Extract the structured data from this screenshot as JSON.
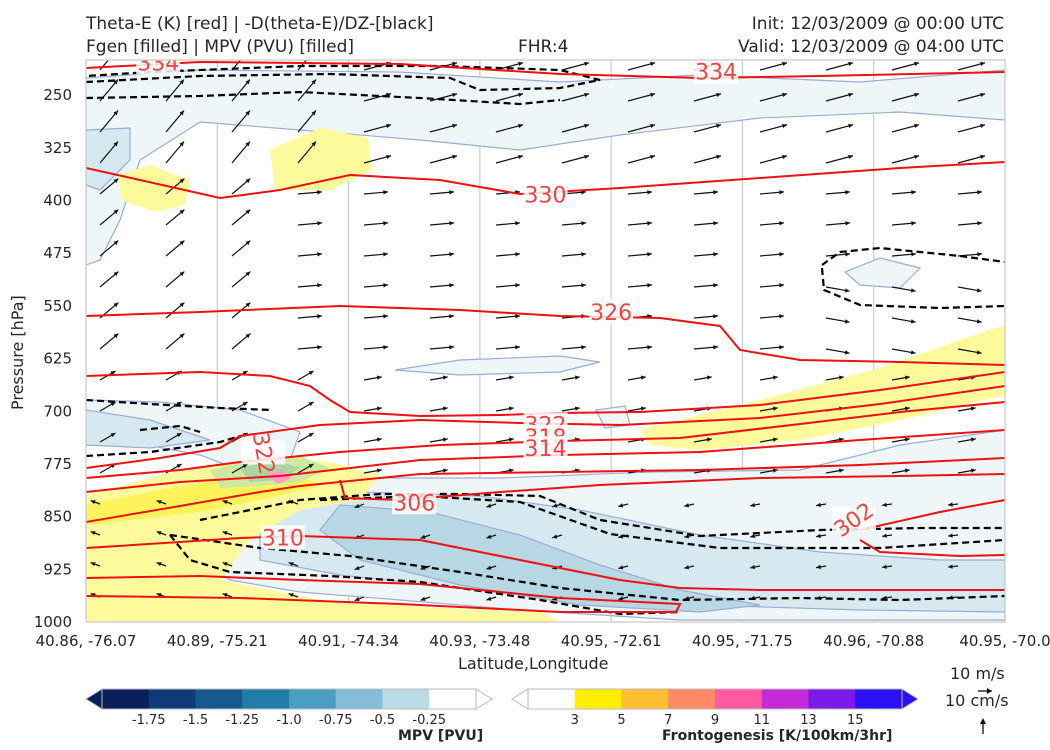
{
  "header": {
    "line1_left": "Theta-E (K) [red] | -D(theta-E)/DZ-[black]",
    "line2_left": "Fgen [filled] | MPV (PVU) [filled]",
    "fhr": "FHR:4",
    "init": "Init: 12/03/2009 @ 00:00 UTC",
    "valid": "Valid: 12/03/2009 @ 04:00 UTC"
  },
  "chart_data": {
    "type": "cross-section",
    "xlabel": "Latitude,Longitude",
    "ylabel": "Pressure [hPa]",
    "x_ticks": [
      "40.86, -76.07",
      "40.89, -75.21",
      "40.91, -74.34",
      "40.93, -73.48",
      "40.95, -72.61",
      "40.95, -71.75",
      "40.96, -70.88",
      "40.95, -70.0"
    ],
    "y_ticks": [
      250,
      325,
      400,
      475,
      550,
      625,
      700,
      775,
      850,
      925,
      1000
    ],
    "ylim": [
      1000,
      200
    ],
    "y_inverted": true,
    "theta_e_labels": [
      {
        "value": "334",
        "x_index": 0.55,
        "p": 205
      },
      {
        "value": "334",
        "x_index": 4.8,
        "p": 218
      },
      {
        "value": "330",
        "x_index": 3.5,
        "p": 393
      },
      {
        "value": "326",
        "x_index": 4.0,
        "p": 560
      },
      {
        "value": "322",
        "x_index": 3.5,
        "p": 720
      },
      {
        "value": "318",
        "x_index": 3.5,
        "p": 738
      },
      {
        "value": "314",
        "x_index": 3.5,
        "p": 754
      },
      {
        "value": "306",
        "x_index": 2.5,
        "p": 831
      },
      {
        "value": "310",
        "x_index": 1.5,
        "p": 881
      },
      {
        "value": "302",
        "x_index": 5.85,
        "p": 855
      },
      {
        "value": "322",
        "x_index": 1.35,
        "p": 760
      }
    ],
    "wind_reference": {
      "horizontal": "10 m/s",
      "vertical": "10 cm/s"
    },
    "mpv_colorbar": {
      "title": "MPV [PVU]",
      "ticks": [
        "-1.75",
        "-1.5",
        "-1.25",
        "-1.0",
        "-0.75",
        "-0.5",
        "-0.25"
      ],
      "colors": [
        "#0a1e5c",
        "#0f3c78",
        "#155a8f",
        "#1f7da8",
        "#4a9ec2",
        "#86bdd6",
        "#bcdbe7",
        "#ffffff"
      ]
    },
    "fgen_colorbar": {
      "title": "Frontogenesis [K/100km/3hr]",
      "ticks": [
        "3",
        "5",
        "7",
        "9",
        "11",
        "13",
        "15"
      ],
      "colors": [
        "#ffffff",
        "#ffee00",
        "#ffbf33",
        "#ff8a66",
        "#ff5aa0",
        "#c52ad8",
        "#7a1aeb",
        "#2a10f5"
      ]
    }
  }
}
